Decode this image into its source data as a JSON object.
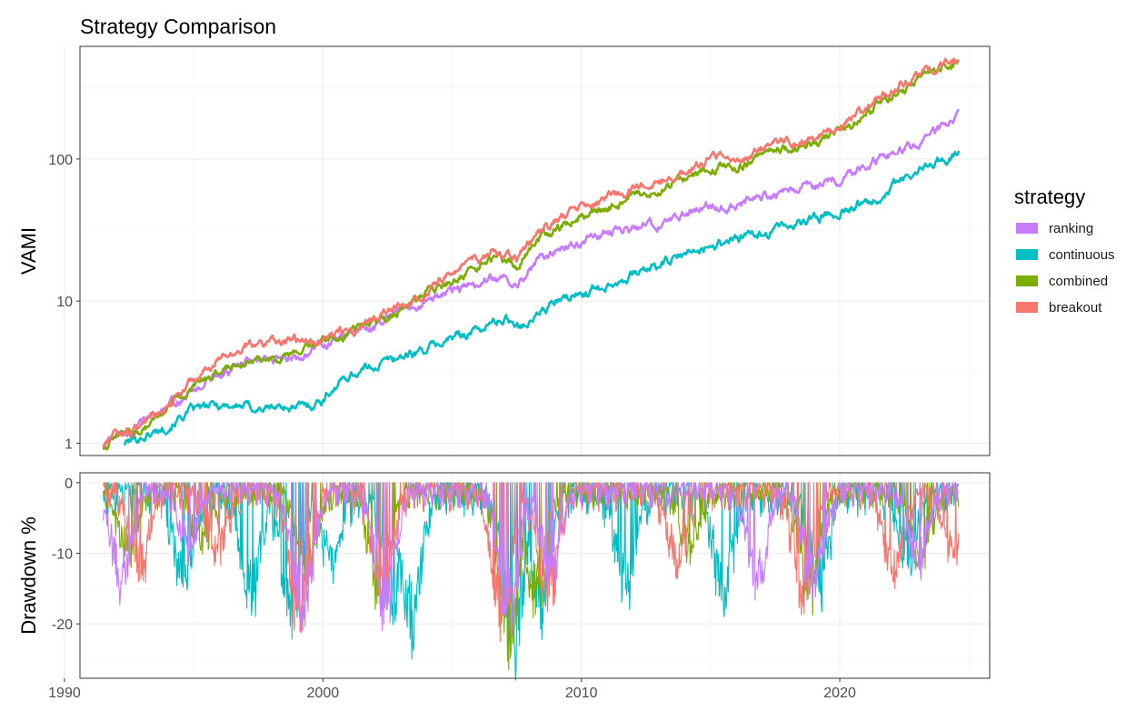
{
  "chart_data": [
    {
      "type": "line",
      "title": "Strategy Comparison",
      "xlabel": "",
      "ylabel": "VAMI",
      "yscale": "log",
      "xlim": [
        1990.6,
        2025.8
      ],
      "ylim": [
        0.82,
        620
      ],
      "x_ticks": [
        "1990",
        "2000",
        "2010",
        "2020"
      ],
      "y_ticks": [
        "1",
        "10",
        "100"
      ],
      "grid": true,
      "legend": {
        "title": "strategy",
        "position": "right"
      },
      "series": [
        {
          "name": "ranking",
          "color": "#C77CFF",
          "x": [
            1991.5,
            1992.0,
            1992.5,
            1993.0,
            1993.5,
            1994.0,
            1994.5,
            1995.0,
            1995.5,
            1996.0,
            1996.5,
            1997.0,
            1997.5,
            1998.0,
            1998.5,
            1999.0,
            1999.5,
            2000.0,
            2000.5,
            2001.0,
            2001.5,
            2002.0,
            2002.5,
            2003.0,
            2003.5,
            2004.0,
            2004.5,
            2005.0,
            2005.5,
            2006.0,
            2006.5,
            2007.0,
            2007.5,
            2008.0,
            2008.5,
            2009.0,
            2009.5,
            2010.0,
            2010.5,
            2011.0,
            2011.5,
            2012.0,
            2012.5,
            2013.0,
            2013.5,
            2014.0,
            2014.5,
            2015.0,
            2015.5,
            2016.0,
            2016.5,
            2017.0,
            2017.5,
            2018.0,
            2018.5,
            2019.0,
            2019.5,
            2020.0,
            2020.5,
            2021.0,
            2021.5,
            2022.0,
            2022.5,
            2023.0,
            2023.5,
            2024.0,
            2024.6
          ],
          "y": [
            0.95,
            1.15,
            1.2,
            1.35,
            1.55,
            1.8,
            2.05,
            2.35,
            2.7,
            3.05,
            3.35,
            3.6,
            3.7,
            3.7,
            3.8,
            4.0,
            4.4,
            4.9,
            5.3,
            5.8,
            6.3,
            6.6,
            7.4,
            8.3,
            9.0,
            10.1,
            11.0,
            11.7,
            12.4,
            13.1,
            14.3,
            14.0,
            13.9,
            17.0,
            20.5,
            22.5,
            24.8,
            26.3,
            28.4,
            30.3,
            31.5,
            32.8,
            33.3,
            35.2,
            38.3,
            41.4,
            46.2,
            48.2,
            47.6,
            48.4,
            51.0,
            55.0,
            59.0,
            63.0,
            64.0,
            65.0,
            70.0,
            76.0,
            82.0,
            92.0,
            102.0,
            110.0,
            118.0,
            128.0,
            145.0,
            165.0,
            195.0
          ]
        },
        {
          "name": "continuous",
          "color": "#00BFC4",
          "x": [
            1992.3,
            1992.8,
            1993.5,
            1994.0,
            1994.5,
            1995.0,
            1995.5,
            1996.0,
            1996.5,
            1997.0,
            1997.5,
            1998.0,
            1998.5,
            1999.0,
            1999.5,
            2000.0,
            2000.5,
            2001.0,
            2001.5,
            2002.0,
            2002.5,
            2003.0,
            2003.5,
            2004.0,
            2004.5,
            2005.0,
            2005.5,
            2006.0,
            2006.5,
            2007.0,
            2007.5,
            2008.0,
            2008.5,
            2009.0,
            2009.5,
            2010.0,
            2010.5,
            2011.0,
            2011.5,
            2012.0,
            2012.5,
            2013.0,
            2013.5,
            2014.0,
            2014.5,
            2015.0,
            2015.5,
            2016.0,
            2016.5,
            2017.0,
            2017.5,
            2018.0,
            2018.5,
            2019.0,
            2019.5,
            2020.0,
            2020.5,
            2021.0,
            2021.5,
            2022.0,
            2022.5,
            2023.0,
            2023.5,
            2024.0,
            2024.6
          ],
          "y": [
            1.0,
            1.08,
            1.2,
            1.35,
            1.55,
            1.7,
            1.78,
            1.85,
            1.86,
            1.82,
            1.76,
            1.78,
            1.82,
            1.75,
            1.85,
            2.05,
            2.55,
            3.0,
            3.25,
            3.55,
            3.8,
            4.1,
            4.3,
            4.6,
            5.0,
            5.5,
            5.9,
            6.3,
            6.9,
            7.5,
            7.1,
            7.2,
            8.6,
            9.7,
            10.4,
            11.3,
            12.3,
            13.4,
            14.5,
            15.5,
            16.7,
            17.8,
            19.2,
            20.8,
            22.5,
            24.5,
            26.5,
            27.5,
            28.0,
            29.5,
            31.8,
            34.0,
            36.0,
            38.5,
            40.5,
            43.0,
            46.0,
            50.0,
            55.0,
            62.0,
            70.0,
            80.0,
            90.0,
            100.0,
            112.0
          ]
        },
        {
          "name": "combined",
          "color": "#7CAE00",
          "x": [
            1991.5,
            1992.0,
            1992.5,
            1993.0,
            1993.5,
            1994.0,
            1994.5,
            1995.0,
            1995.5,
            1996.0,
            1996.5,
            1997.0,
            1997.5,
            1998.0,
            1998.5,
            1999.0,
            1999.5,
            2000.0,
            2000.5,
            2001.0,
            2001.5,
            2002.0,
            2002.5,
            2003.0,
            2003.5,
            2004.0,
            2004.5,
            2005.0,
            2005.5,
            2006.0,
            2006.5,
            2007.0,
            2007.5,
            2008.0,
            2008.5,
            2009.0,
            2009.5,
            2010.0,
            2010.5,
            2011.0,
            2011.5,
            2012.0,
            2012.5,
            2013.0,
            2013.5,
            2014.0,
            2014.5,
            2015.0,
            2015.5,
            2016.0,
            2016.5,
            2017.0,
            2017.5,
            2018.0,
            2018.5,
            2019.0,
            2019.5,
            2020.0,
            2020.5,
            2021.0,
            2021.5,
            2022.0,
            2022.5,
            2023.0,
            2023.5,
            2024.0,
            2024.6
          ],
          "y": [
            0.95,
            1.12,
            1.15,
            1.3,
            1.5,
            1.78,
            2.05,
            2.45,
            2.85,
            3.25,
            3.6,
            3.8,
            3.95,
            4.0,
            4.05,
            4.2,
            4.6,
            5.1,
            5.5,
            6.0,
            6.6,
            7.1,
            7.9,
            9.0,
            10.1,
            11.4,
            12.7,
            14.0,
            15.6,
            17.3,
            19.5,
            18.4,
            18.1,
            23.0,
            28.5,
            32.0,
            35.5,
            38.5,
            42.0,
            45.5,
            48.5,
            51.0,
            53.0,
            57.0,
            64.0,
            71.0,
            80.0,
            86.0,
            87.0,
            89.0,
            96.0,
            106.0,
            115.0,
            120.0,
            121.0,
            128.0,
            143.0,
            158.0,
            175.0,
            200.0,
            240.0,
            282.0,
            325.0,
            370.0,
            410.0,
            440.0,
            470.0
          ]
        },
        {
          "name": "breakout",
          "color": "#F8766D",
          "x": [
            1991.5,
            1992.0,
            1992.5,
            1993.0,
            1993.5,
            1994.0,
            1994.5,
            1995.0,
            1995.5,
            1996.0,
            1996.5,
            1997.0,
            1997.5,
            1998.0,
            1998.5,
            1999.0,
            1999.5,
            2000.0,
            2000.5,
            2001.0,
            2001.5,
            2002.0,
            2002.5,
            2003.0,
            2003.5,
            2004.0,
            2004.5,
            2005.0,
            2005.5,
            2006.0,
            2006.5,
            2007.0,
            2007.5,
            2008.0,
            2008.5,
            2009.0,
            2009.5,
            2010.0,
            2010.5,
            2011.0,
            2011.5,
            2012.0,
            2012.5,
            2013.0,
            2013.5,
            2014.0,
            2014.5,
            2015.0,
            2015.5,
            2016.0,
            2016.5,
            2017.0,
            2017.5,
            2018.0,
            2018.5,
            2019.0,
            2019.5,
            2020.0,
            2020.5,
            2021.0,
            2021.5,
            2022.0,
            2022.5,
            2023.0,
            2023.5,
            2024.0,
            2024.6
          ],
          "y": [
            0.95,
            1.12,
            1.18,
            1.38,
            1.62,
            1.95,
            2.3,
            2.75,
            3.25,
            3.8,
            4.3,
            4.7,
            5.0,
            5.3,
            5.4,
            5.2,
            5.1,
            5.4,
            6.0,
            6.4,
            6.9,
            7.4,
            8.3,
            9.5,
            10.8,
            12.3,
            14.0,
            15.5,
            17.3,
            19.0,
            21.5,
            20.0,
            19.6,
            25.5,
            32.0,
            36.5,
            40.5,
            44.0,
            48.5,
            53.0,
            57.0,
            60.5,
            62.5,
            67.0,
            74.0,
            82.0,
            92.0,
            100.0,
            102.0,
            104.0,
            110.0,
            119.0,
            128.0,
            133.0,
            134.0,
            142.0,
            158.0,
            175.0,
            194.0,
            222.0,
            265.0,
            310.0,
            355.0,
            400.0,
            440.0,
            475.0,
            510.0
          ]
        }
      ]
    },
    {
      "type": "line",
      "title": "",
      "xlabel": "",
      "ylabel": "Drawdown %",
      "xlim": [
        1990.6,
        2025.8
      ],
      "ylim": [
        -27.7,
        1.4
      ],
      "x_ticks": [
        "1990",
        "2000",
        "2010",
        "2020"
      ],
      "y_ticks": [
        "0",
        "-10",
        "-20"
      ],
      "grid": true,
      "series": [
        {
          "name": "ranking",
          "color": "#C77CFF",
          "amplitude": 0.85,
          "phase": 1.0,
          "events": [
            [
              1992.2,
              -15
            ],
            [
              1994.8,
              -10
            ],
            [
              1999.2,
              -21
            ],
            [
              2002.4,
              -20
            ],
            [
              2007.2,
              -21
            ],
            [
              2008.8,
              -14
            ],
            [
              2016.8,
              -15
            ],
            [
              2019.0,
              -17
            ],
            [
              2023.0,
              -12
            ]
          ]
        },
        {
          "name": "continuous",
          "color": "#00BFC4",
          "amplitude": 1.15,
          "phase": 2.3,
          "events": [
            [
              1994.6,
              -14
            ],
            [
              1997.2,
              -18
            ],
            [
              1998.8,
              -21
            ],
            [
              2000.3,
              -12
            ],
            [
              2002.7,
              -19
            ],
            [
              2003.4,
              -22
            ],
            [
              2007.4,
              -27
            ],
            [
              2008.4,
              -19
            ],
            [
              2011.7,
              -15
            ],
            [
              2015.5,
              -17
            ],
            [
              2019.2,
              -15
            ],
            [
              2022.6,
              -12
            ]
          ]
        },
        {
          "name": "combined",
          "color": "#7CAE00",
          "amplitude": 0.9,
          "phase": 3.1,
          "events": [
            [
              1992.4,
              -10
            ],
            [
              1995.3,
              -8
            ],
            [
              1999.4,
              -13
            ],
            [
              2002.2,
              -16
            ],
            [
              2007.2,
              -25
            ],
            [
              2008.2,
              -18
            ],
            [
              2014.2,
              -10
            ],
            [
              2018.8,
              -17
            ],
            [
              2023.1,
              -11
            ]
          ]
        },
        {
          "name": "breakout",
          "color": "#F8766D",
          "amplitude": 0.95,
          "phase": 4.4,
          "events": [
            [
              1992.9,
              -13
            ],
            [
              1995.9,
              -10
            ],
            [
              1999.1,
              -22
            ],
            [
              2002.3,
              -18
            ],
            [
              2006.9,
              -22
            ],
            [
              2008.7,
              -18
            ],
            [
              2013.7,
              -12
            ],
            [
              2018.6,
              -18
            ],
            [
              2022.1,
              -14
            ],
            [
              2024.4,
              -11
            ]
          ]
        }
      ]
    }
  ]
}
